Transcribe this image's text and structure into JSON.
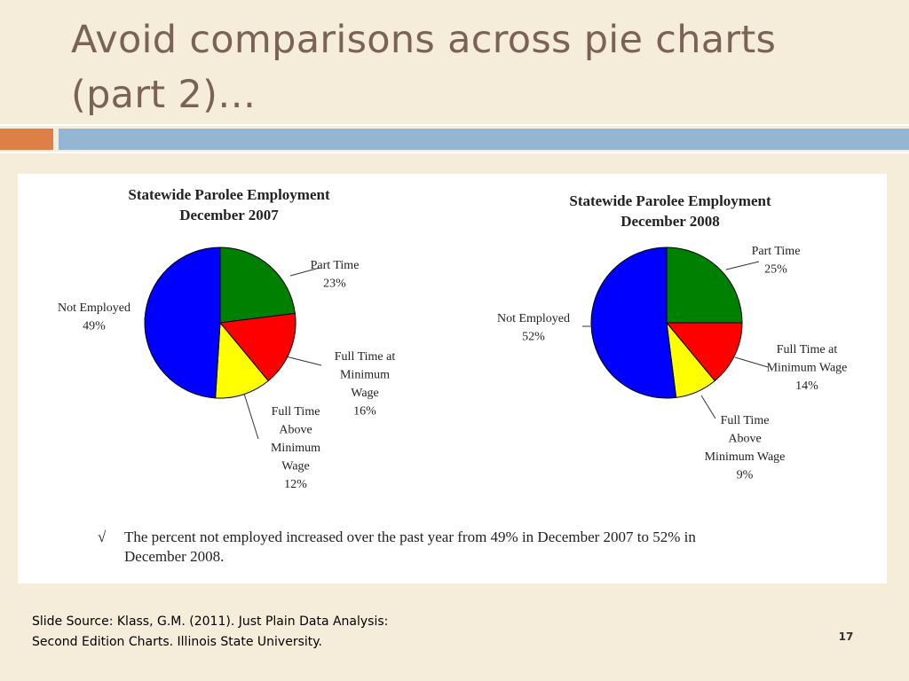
{
  "slide": {
    "title_line1": "Avoid comparisons across pie charts",
    "title_line2": "(part 2)…",
    "source_line1": "Slide Source: Klass, G.M. (2011). Just Plain Data Analysis:",
    "source_line2": "Second Edition Charts. Illinois State University.",
    "page_number": "17",
    "colors": {
      "background": "#f5ecd9",
      "title": "#7a6352",
      "accent_orange": "#dd8047",
      "accent_blue": "#94b6d2"
    }
  },
  "figure": {
    "check_mark": "√",
    "note_line1": "The percent not employed increased over the past year from 49% in December 2007 to 52% in",
    "note_line2": "December 2008."
  },
  "chart_data": [
    {
      "type": "pie",
      "title": "Statewide Parolee Employment",
      "subtitle": "December 2007",
      "slices": [
        {
          "label_lines": [
            "Part Time"
          ],
          "pct_text": "23%",
          "value": 23,
          "color": "#008000"
        },
        {
          "label_lines": [
            "Full Time at",
            "Minimum",
            "Wage"
          ],
          "pct_text": "16%",
          "value": 16,
          "color": "#ff0000"
        },
        {
          "label_lines": [
            "Full Time",
            "Above",
            "Minimum",
            "Wage"
          ],
          "pct_text": "12%",
          "value": 12,
          "color": "#ffff00"
        },
        {
          "label_lines": [
            "Not Employed"
          ],
          "pct_text": "49%",
          "value": 49,
          "color": "#0000ff"
        }
      ]
    },
    {
      "type": "pie",
      "title": "Statewide Parolee Employment",
      "subtitle": "December 2008",
      "slices": [
        {
          "label_lines": [
            "Part Time"
          ],
          "pct_text": "25%",
          "value": 25,
          "color": "#008000"
        },
        {
          "label_lines": [
            "Full Time at",
            "Minimum Wage"
          ],
          "pct_text": "14%",
          "value": 14,
          "color": "#ff0000"
        },
        {
          "label_lines": [
            "Full Time",
            "Above",
            "Minimum Wage"
          ],
          "pct_text": "9%",
          "value": 9,
          "color": "#ffff00"
        },
        {
          "label_lines": [
            "Not Employed"
          ],
          "pct_text": "52%",
          "value": 52,
          "color": "#0000ff"
        }
      ]
    }
  ]
}
